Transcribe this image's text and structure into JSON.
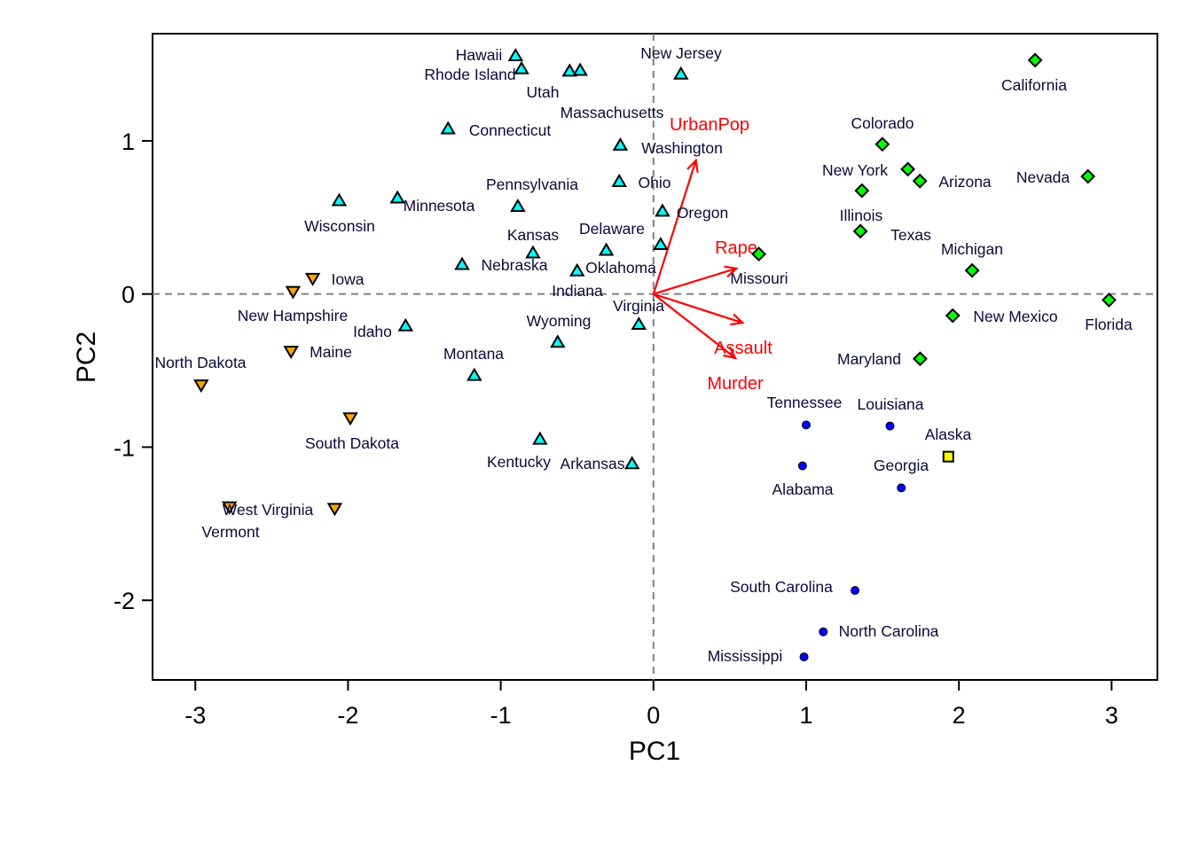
{
  "chart_data": {
    "type": "scatter",
    "title": "",
    "xlabel": "PC1",
    "ylabel": "PC2",
    "xlim": [
      -3.28,
      3.3
    ],
    "ylim": [
      -2.52,
      1.7
    ],
    "xticks": [
      "-3",
      "-2",
      "-1",
      "0",
      "1",
      "2",
      "3"
    ],
    "yticks": [
      "-2",
      "-1",
      "0",
      "1"
    ],
    "reference_lines": {
      "x": 0,
      "y": 0,
      "style": "dashed",
      "color": "#808080"
    },
    "group_styles": {
      "1": {
        "marker": "triangle-up",
        "color": "#00FFFF"
      },
      "2": {
        "marker": "triangle-down",
        "color": "#FFA500"
      },
      "3": {
        "marker": "diamond",
        "color": "#00FF00"
      },
      "4": {
        "marker": "circle",
        "color": "#0000FF"
      },
      "5": {
        "marker": "square",
        "color": "#FFFF00"
      }
    },
    "points": [
      {
        "label": "Hawaii",
        "x": -0.903,
        "y": 1.555,
        "group": 1
      },
      {
        "label": "Utah",
        "x": -0.549,
        "y": 1.455,
        "group": 1
      },
      {
        "label": "Rhode Island",
        "x": -0.864,
        "y": 1.47,
        "group": 1
      },
      {
        "label": "Massachusetts",
        "x": -0.48,
        "y": 1.46,
        "group": 1
      },
      {
        "label": "New Jersey",
        "x": 0.18,
        "y": 1.435,
        "group": 1
      },
      {
        "label": "Connecticut",
        "x": -1.345,
        "y": 1.078,
        "group": 1
      },
      {
        "label": "Washington",
        "x": -0.217,
        "y": 0.971,
        "group": 1
      },
      {
        "label": "Ohio",
        "x": -0.224,
        "y": 0.734,
        "group": 1
      },
      {
        "label": "Oregon",
        "x": 0.059,
        "y": 0.54,
        "group": 1
      },
      {
        "label": "Pennsylvania",
        "x": -0.888,
        "y": 0.571,
        "group": 1
      },
      {
        "label": "Minnesota",
        "x": -1.676,
        "y": 0.626,
        "group": 1
      },
      {
        "label": "Wisconsin",
        "x": -2.058,
        "y": 0.609,
        "group": 1
      },
      {
        "label": "Delaware",
        "x": 0.047,
        "y": 0.322,
        "group": 1
      },
      {
        "label": "Indiana",
        "x": -0.5,
        "y": 0.15,
        "group": 1
      },
      {
        "label": "Oklahoma",
        "x": -0.309,
        "y": 0.285,
        "group": 1
      },
      {
        "label": "Kansas",
        "x": -0.789,
        "y": 0.267,
        "group": 1
      },
      {
        "label": "Nebraska",
        "x": -1.253,
        "y": 0.192,
        "group": 1
      },
      {
        "label": "Virginia",
        "x": -0.096,
        "y": -0.199,
        "group": 1
      },
      {
        "label": "Idaho",
        "x": -1.623,
        "y": -0.209,
        "group": 1
      },
      {
        "label": "Wyoming",
        "x": -0.627,
        "y": -0.316,
        "group": 1
      },
      {
        "label": "Montana",
        "x": -1.173,
        "y": -0.532,
        "group": 1
      },
      {
        "label": "Kentucky",
        "x": -0.743,
        "y": -0.949,
        "group": 1
      },
      {
        "label": "Arkansas",
        "x": -0.14,
        "y": -1.109,
        "group": 1
      },
      {
        "label": "Iowa",
        "x": -2.231,
        "y": 0.103,
        "group": 2
      },
      {
        "label": "New Hampshire",
        "x": -2.36,
        "y": 0.018,
        "group": 2
      },
      {
        "label": "Maine",
        "x": -2.373,
        "y": -0.373,
        "group": 2
      },
      {
        "label": "North Dakota",
        "x": -2.962,
        "y": -0.593,
        "group": 2
      },
      {
        "label": "South Dakota",
        "x": -1.985,
        "y": -0.808,
        "group": 2
      },
      {
        "label": "West Virginia",
        "x": -2.087,
        "y": -1.399,
        "group": 2
      },
      {
        "label": "Vermont",
        "x": -2.776,
        "y": -1.389,
        "group": 2
      },
      {
        "label": "California",
        "x": 2.499,
        "y": 1.527,
        "group": 3
      },
      {
        "label": "Colorado",
        "x": 1.499,
        "y": 0.978,
        "group": 3
      },
      {
        "label": "New York",
        "x": 1.666,
        "y": 0.815,
        "group": 3
      },
      {
        "label": "Arizona",
        "x": 1.745,
        "y": 0.738,
        "group": 3
      },
      {
        "label": "Nevada",
        "x": 2.845,
        "y": 0.768,
        "group": 3
      },
      {
        "label": "Illinois",
        "x": 1.365,
        "y": 0.675,
        "group": 3
      },
      {
        "label": "Texas",
        "x": 1.355,
        "y": 0.41,
        "group": 3
      },
      {
        "label": "Missouri",
        "x": 0.69,
        "y": 0.261,
        "group": 3
      },
      {
        "label": "Michigan",
        "x": 2.087,
        "y": 0.154,
        "group": 3
      },
      {
        "label": "New Mexico",
        "x": 1.96,
        "y": -0.141,
        "group": 3
      },
      {
        "label": "Florida",
        "x": 2.983,
        "y": -0.039,
        "group": 3
      },
      {
        "label": "Maryland",
        "x": 1.746,
        "y": -0.423,
        "group": 3
      },
      {
        "label": "Tennessee",
        "x": 1.0,
        "y": -0.855,
        "group": 4
      },
      {
        "label": "Louisiana",
        "x": 1.549,
        "y": -0.862,
        "group": 4
      },
      {
        "label": "Georgia",
        "x": 1.623,
        "y": -1.266,
        "group": 4
      },
      {
        "label": "Alabama",
        "x": 0.976,
        "y": -1.122,
        "group": 4
      },
      {
        "label": "South Carolina",
        "x": 1.32,
        "y": -1.936,
        "group": 4
      },
      {
        "label": "North Carolina",
        "x": 1.112,
        "y": -2.206,
        "group": 4
      },
      {
        "label": "Mississippi",
        "x": 0.986,
        "y": -2.37,
        "group": 4
      },
      {
        "label": "Alaska",
        "x": 1.931,
        "y": -1.062,
        "group": 5
      }
    ],
    "loadings": {
      "color": "#FF0000",
      "vectors": [
        {
          "label": "UrbanPop",
          "x": 0.278,
          "y": 0.873
        },
        {
          "label": "Rape",
          "x": 0.543,
          "y": 0.167
        },
        {
          "label": "Assault",
          "x": 0.583,
          "y": -0.188
        },
        {
          "label": "Murder",
          "x": 0.536,
          "y": -0.418
        }
      ]
    }
  }
}
